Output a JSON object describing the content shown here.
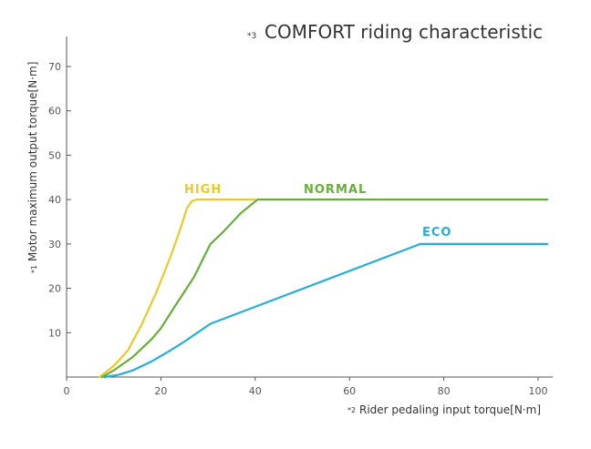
{
  "chart_data": {
    "type": "line",
    "title_note": "*3",
    "title": "COMFORT riding characteristic",
    "xlabel_note": "*2",
    "xlabel": "Rider pedaling input torque[N·m]",
    "ylabel_note": "*1",
    "ylabel": "Motor maximum output torque[N·m]",
    "xlim": [
      0,
      102
    ],
    "ylim": [
      0,
      75
    ],
    "xticks": [
      "0",
      "20",
      "40",
      "60",
      "80",
      "100"
    ],
    "yticks": [
      "10",
      "20",
      "30",
      "40",
      "50",
      "60",
      "70"
    ],
    "grid": false,
    "series": [
      {
        "name": "HIGH",
        "color": "#EBC92A",
        "points": [
          [
            7,
            0
          ],
          [
            10,
            2.5
          ],
          [
            13,
            6
          ],
          [
            16,
            12
          ],
          [
            19,
            19
          ],
          [
            22,
            27
          ],
          [
            24,
            33
          ],
          [
            25.5,
            38
          ],
          [
            26.5,
            39.6
          ],
          [
            27.5,
            40
          ],
          [
            40,
            40
          ]
        ]
      },
      {
        "name": "NORMAL",
        "color": "#67AE3B",
        "points": [
          [
            7.5,
            0
          ],
          [
            10,
            1.5
          ],
          [
            14,
            4.5
          ],
          [
            18,
            8.5
          ],
          [
            20,
            11
          ],
          [
            23,
            16
          ],
          [
            27,
            22.5
          ],
          [
            30.5,
            30
          ],
          [
            33,
            32.5
          ],
          [
            37,
            37
          ],
          [
            40.5,
            40
          ],
          [
            102,
            40
          ]
        ]
      },
      {
        "name": "ECO",
        "color": "#24AED8",
        "points": [
          [
            8,
            0
          ],
          [
            11,
            0.5
          ],
          [
            14,
            1.5
          ],
          [
            18,
            3.5
          ],
          [
            22,
            6
          ],
          [
            25,
            8
          ],
          [
            30.5,
            12
          ],
          [
            75,
            30
          ],
          [
            102,
            30
          ]
        ]
      }
    ]
  }
}
